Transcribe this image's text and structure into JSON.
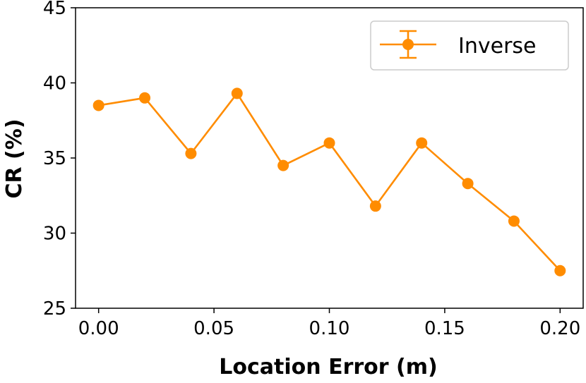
{
  "chart_data": {
    "type": "line",
    "xlabel": "Location Error (m)",
    "ylabel": "CR (%)",
    "xlim": [
      -0.01,
      0.21
    ],
    "ylim": [
      25,
      45
    ],
    "x_ticks": [
      "0.00",
      "0.05",
      "0.10",
      "0.15",
      "0.20"
    ],
    "y_ticks": [
      "25",
      "30",
      "35",
      "40",
      "45"
    ],
    "grid": false,
    "legend_position": "top-right",
    "series": [
      {
        "name": "Inverse",
        "color": "#ff8c00",
        "marker": "circle",
        "error_bars": true,
        "x": [
          0.0,
          0.02,
          0.04,
          0.06,
          0.08,
          0.1,
          0.12,
          0.14,
          0.16,
          0.18,
          0.2
        ],
        "y": [
          38.5,
          39.0,
          35.3,
          39.3,
          34.5,
          36.0,
          31.8,
          36.0,
          33.3,
          30.8,
          27.5
        ]
      }
    ]
  }
}
